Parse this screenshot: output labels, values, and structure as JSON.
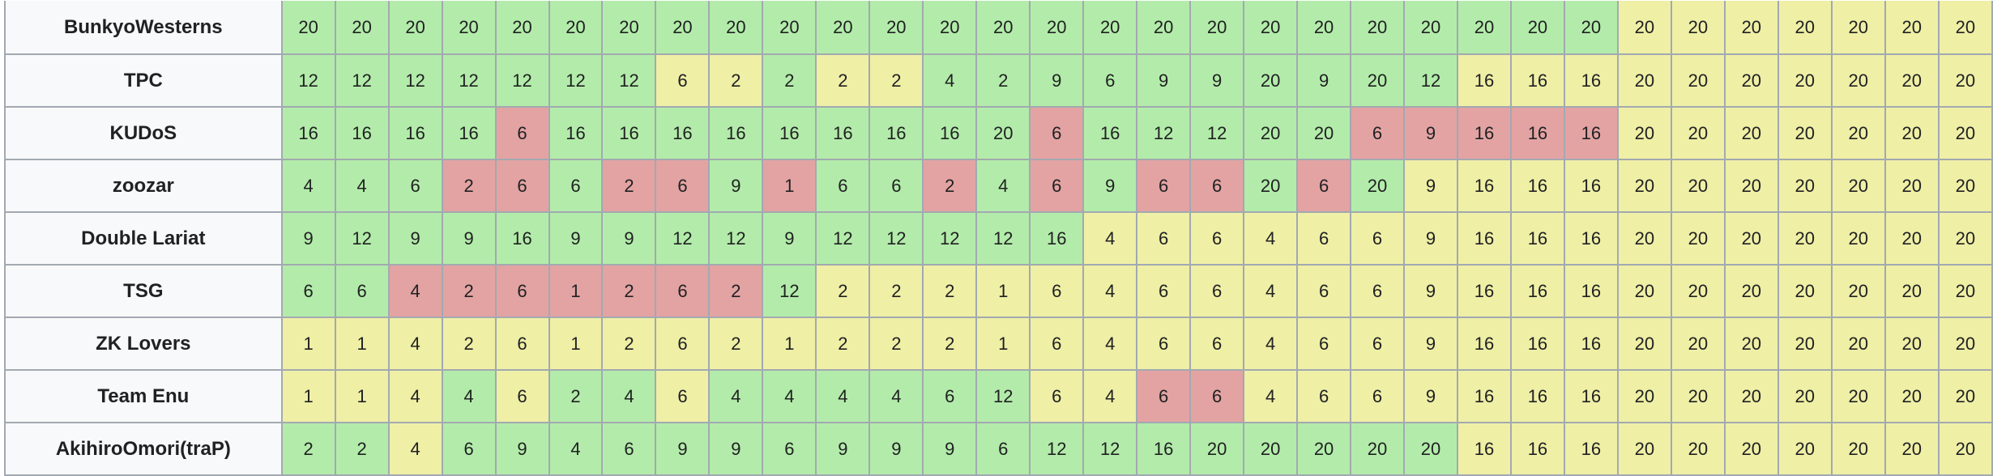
{
  "table": {
    "rows": [
      {
        "team": "BunkyoWesterns",
        "scores": [
          "20",
          "20",
          "20",
          "20",
          "20",
          "20",
          "20",
          "20",
          "20",
          "20",
          "20",
          "20",
          "20",
          "20",
          "20",
          "20",
          "20",
          "20",
          "20",
          "20",
          "20",
          "20",
          "20",
          "20",
          "20",
          "20",
          "20",
          "20",
          "20",
          "20",
          "20",
          "20"
        ],
        "status": [
          "g",
          "g",
          "g",
          "g",
          "g",
          "g",
          "g",
          "g",
          "g",
          "g",
          "g",
          "g",
          "g",
          "g",
          "g",
          "g",
          "g",
          "g",
          "g",
          "g",
          "g",
          "g",
          "g",
          "g",
          "g",
          "y",
          "y",
          "y",
          "y",
          "y",
          "y",
          "y"
        ]
      },
      {
        "team": "TPC",
        "scores": [
          "12",
          "12",
          "12",
          "12",
          "12",
          "12",
          "12",
          "6",
          "2",
          "2",
          "2",
          "2",
          "4",
          "2",
          "9",
          "6",
          "9",
          "9",
          "20",
          "9",
          "20",
          "12",
          "16",
          "16",
          "16",
          "20",
          "20",
          "20",
          "20",
          "20",
          "20",
          "20"
        ],
        "status": [
          "g",
          "g",
          "g",
          "g",
          "g",
          "g",
          "g",
          "y",
          "y",
          "g",
          "y",
          "y",
          "g",
          "g",
          "g",
          "g",
          "g",
          "g",
          "g",
          "g",
          "g",
          "g",
          "y",
          "y",
          "y",
          "y",
          "y",
          "y",
          "y",
          "y",
          "y",
          "y"
        ]
      },
      {
        "team": "KUDoS",
        "scores": [
          "16",
          "16",
          "16",
          "16",
          "6",
          "16",
          "16",
          "16",
          "16",
          "16",
          "16",
          "16",
          "16",
          "20",
          "6",
          "16",
          "12",
          "12",
          "20",
          "20",
          "6",
          "9",
          "16",
          "16",
          "16",
          "20",
          "20",
          "20",
          "20",
          "20",
          "20",
          "20"
        ],
        "status": [
          "g",
          "g",
          "g",
          "g",
          "r",
          "g",
          "g",
          "g",
          "g",
          "g",
          "g",
          "g",
          "g",
          "g",
          "r",
          "g",
          "g",
          "g",
          "g",
          "g",
          "r",
          "r",
          "r",
          "r",
          "r",
          "y",
          "y",
          "y",
          "y",
          "y",
          "y",
          "y"
        ]
      },
      {
        "team": "zoozar",
        "scores": [
          "4",
          "4",
          "6",
          "2",
          "6",
          "6",
          "2",
          "6",
          "9",
          "1",
          "6",
          "6",
          "2",
          "4",
          "6",
          "9",
          "6",
          "6",
          "20",
          "6",
          "20",
          "9",
          "16",
          "16",
          "16",
          "20",
          "20",
          "20",
          "20",
          "20",
          "20",
          "20"
        ],
        "status": [
          "g",
          "g",
          "g",
          "r",
          "r",
          "g",
          "r",
          "r",
          "g",
          "r",
          "g",
          "g",
          "r",
          "g",
          "r",
          "g",
          "r",
          "r",
          "g",
          "r",
          "g",
          "y",
          "y",
          "y",
          "y",
          "y",
          "y",
          "y",
          "y",
          "y",
          "y",
          "y"
        ]
      },
      {
        "team": "Double Lariat",
        "scores": [
          "9",
          "12",
          "9",
          "9",
          "16",
          "9",
          "9",
          "12",
          "12",
          "9",
          "12",
          "12",
          "12",
          "12",
          "16",
          "4",
          "6",
          "6",
          "4",
          "6",
          "6",
          "9",
          "16",
          "16",
          "16",
          "20",
          "20",
          "20",
          "20",
          "20",
          "20",
          "20"
        ],
        "status": [
          "g",
          "g",
          "g",
          "g",
          "g",
          "g",
          "g",
          "g",
          "g",
          "g",
          "g",
          "g",
          "g",
          "g",
          "g",
          "y",
          "y",
          "y",
          "y",
          "y",
          "y",
          "y",
          "y",
          "y",
          "y",
          "y",
          "y",
          "y",
          "y",
          "y",
          "y",
          "y"
        ]
      },
      {
        "team": "TSG",
        "scores": [
          "6",
          "6",
          "4",
          "2",
          "6",
          "1",
          "2",
          "6",
          "2",
          "12",
          "2",
          "2",
          "2",
          "1",
          "6",
          "4",
          "6",
          "6",
          "4",
          "6",
          "6",
          "9",
          "16",
          "16",
          "16",
          "20",
          "20",
          "20",
          "20",
          "20",
          "20",
          "20"
        ],
        "status": [
          "g",
          "g",
          "r",
          "r",
          "r",
          "r",
          "r",
          "r",
          "r",
          "g",
          "y",
          "y",
          "y",
          "y",
          "y",
          "y",
          "y",
          "y",
          "y",
          "y",
          "y",
          "y",
          "y",
          "y",
          "y",
          "y",
          "y",
          "y",
          "y",
          "y",
          "y",
          "y"
        ]
      },
      {
        "team": "ZK Lovers",
        "scores": [
          "1",
          "1",
          "4",
          "2",
          "6",
          "1",
          "2",
          "6",
          "2",
          "1",
          "2",
          "2",
          "2",
          "1",
          "6",
          "4",
          "6",
          "6",
          "4",
          "6",
          "6",
          "9",
          "16",
          "16",
          "16",
          "20",
          "20",
          "20",
          "20",
          "20",
          "20",
          "20"
        ],
        "status": [
          "y",
          "y",
          "y",
          "y",
          "y",
          "y",
          "y",
          "y",
          "y",
          "y",
          "y",
          "y",
          "y",
          "y",
          "y",
          "y",
          "y",
          "y",
          "y",
          "y",
          "y",
          "y",
          "y",
          "y",
          "y",
          "y",
          "y",
          "y",
          "y",
          "y",
          "y",
          "y"
        ]
      },
      {
        "team": "Team Enu",
        "scores": [
          "1",
          "1",
          "4",
          "4",
          "6",
          "2",
          "4",
          "6",
          "4",
          "4",
          "4",
          "4",
          "6",
          "12",
          "6",
          "4",
          "6",
          "6",
          "4",
          "6",
          "6",
          "9",
          "16",
          "16",
          "16",
          "20",
          "20",
          "20",
          "20",
          "20",
          "20",
          "20"
        ],
        "status": [
          "y",
          "y",
          "y",
          "g",
          "y",
          "g",
          "g",
          "y",
          "g",
          "g",
          "g",
          "g",
          "g",
          "g",
          "y",
          "y",
          "r",
          "r",
          "y",
          "y",
          "y",
          "y",
          "y",
          "y",
          "y",
          "y",
          "y",
          "y",
          "y",
          "y",
          "y",
          "y"
        ]
      },
      {
        "team": "AkihiroOmori(traP)",
        "scores": [
          "2",
          "2",
          "4",
          "6",
          "9",
          "4",
          "6",
          "9",
          "9",
          "6",
          "9",
          "9",
          "9",
          "6",
          "12",
          "12",
          "16",
          "20",
          "20",
          "20",
          "20",
          "20",
          "16",
          "16",
          "16",
          "20",
          "20",
          "20",
          "20",
          "20",
          "20",
          "20"
        ],
        "status": [
          "g",
          "g",
          "y",
          "g",
          "g",
          "g",
          "g",
          "g",
          "g",
          "g",
          "g",
          "g",
          "g",
          "g",
          "g",
          "g",
          "g",
          "g",
          "g",
          "g",
          "g",
          "g",
          "y",
          "y",
          "y",
          "y",
          "y",
          "y",
          "y",
          "y",
          "y",
          "y"
        ]
      }
    ]
  },
  "colors": {
    "g": "#b3ecaa",
    "y": "#efefa6",
    "r": "#e3a3a3",
    "header": "#f8f9fa",
    "border": "#a2a9b1"
  }
}
